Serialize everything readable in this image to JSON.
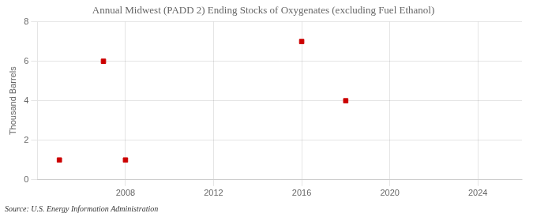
{
  "chart_data": {
    "type": "scatter",
    "title": "Annual Midwest (PADD 2) Ending Stocks of Oxygenates (excluding Fuel Ethanol)",
    "ylabel": "Thousand Barrels",
    "source": "Source: U.S. Energy Information Administration",
    "x": [
      2005,
      2007,
      2008,
      2016,
      2018
    ],
    "values": [
      1,
      6,
      1,
      7,
      4
    ],
    "color": "#cc0000",
    "marker": "square",
    "xlim": [
      2004,
      2026
    ],
    "xticks": [
      2008,
      2012,
      2016,
      2020,
      2024
    ],
    "ylim": [
      0,
      8
    ],
    "yticks": [
      0,
      2,
      4,
      6,
      8
    ],
    "grid": true
  }
}
